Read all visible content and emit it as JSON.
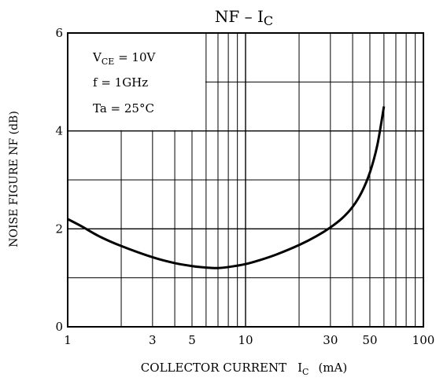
{
  "chart_data": {
    "type": "line",
    "title": {
      "main": "NF  –  I",
      "sub": "C"
    },
    "xlabel": {
      "prefix": "COLLECTOR CURRENT",
      "symbol": "I",
      "sub": "C",
      "unit": "(mA)"
    },
    "ylabel": "NOISE FIGURE   NF   (dB)",
    "x_scale": "log",
    "xlim": [
      1,
      100
    ],
    "ylim": [
      0,
      6
    ],
    "x_ticks": [
      {
        "value": 1,
        "label": "1"
      },
      {
        "value": 3,
        "label": "3"
      },
      {
        "value": 5,
        "label": "5"
      },
      {
        "value": 10,
        "label": "10"
      },
      {
        "value": 30,
        "label": "30"
      },
      {
        "value": 50,
        "label": "50"
      },
      {
        "value": 100,
        "label": "100"
      }
    ],
    "y_ticks": [
      {
        "value": 0,
        "label": "0"
      },
      {
        "value": 2,
        "label": "2"
      },
      {
        "value": 4,
        "label": "4"
      },
      {
        "value": 6,
        "label": "6"
      }
    ],
    "grid": true,
    "legend_box": {
      "vce": {
        "prefix": "V",
        "sub": "CE",
        "value": " = 10V"
      },
      "freq": "f = 1GHz",
      "temp": "Ta = 25°C"
    },
    "series": [
      {
        "x": [
          1,
          1.2,
          1.5,
          2,
          3,
          4,
          5,
          6,
          7,
          8,
          10,
          12,
          15,
          20,
          25,
          30,
          35,
          40,
          45,
          50,
          55,
          60
        ],
        "y": [
          2.2,
          2.05,
          1.85,
          1.65,
          1.42,
          1.3,
          1.24,
          1.21,
          1.2,
          1.22,
          1.28,
          1.36,
          1.48,
          1.67,
          1.85,
          2.03,
          2.22,
          2.45,
          2.75,
          3.15,
          3.7,
          4.5
        ]
      }
    ]
  }
}
